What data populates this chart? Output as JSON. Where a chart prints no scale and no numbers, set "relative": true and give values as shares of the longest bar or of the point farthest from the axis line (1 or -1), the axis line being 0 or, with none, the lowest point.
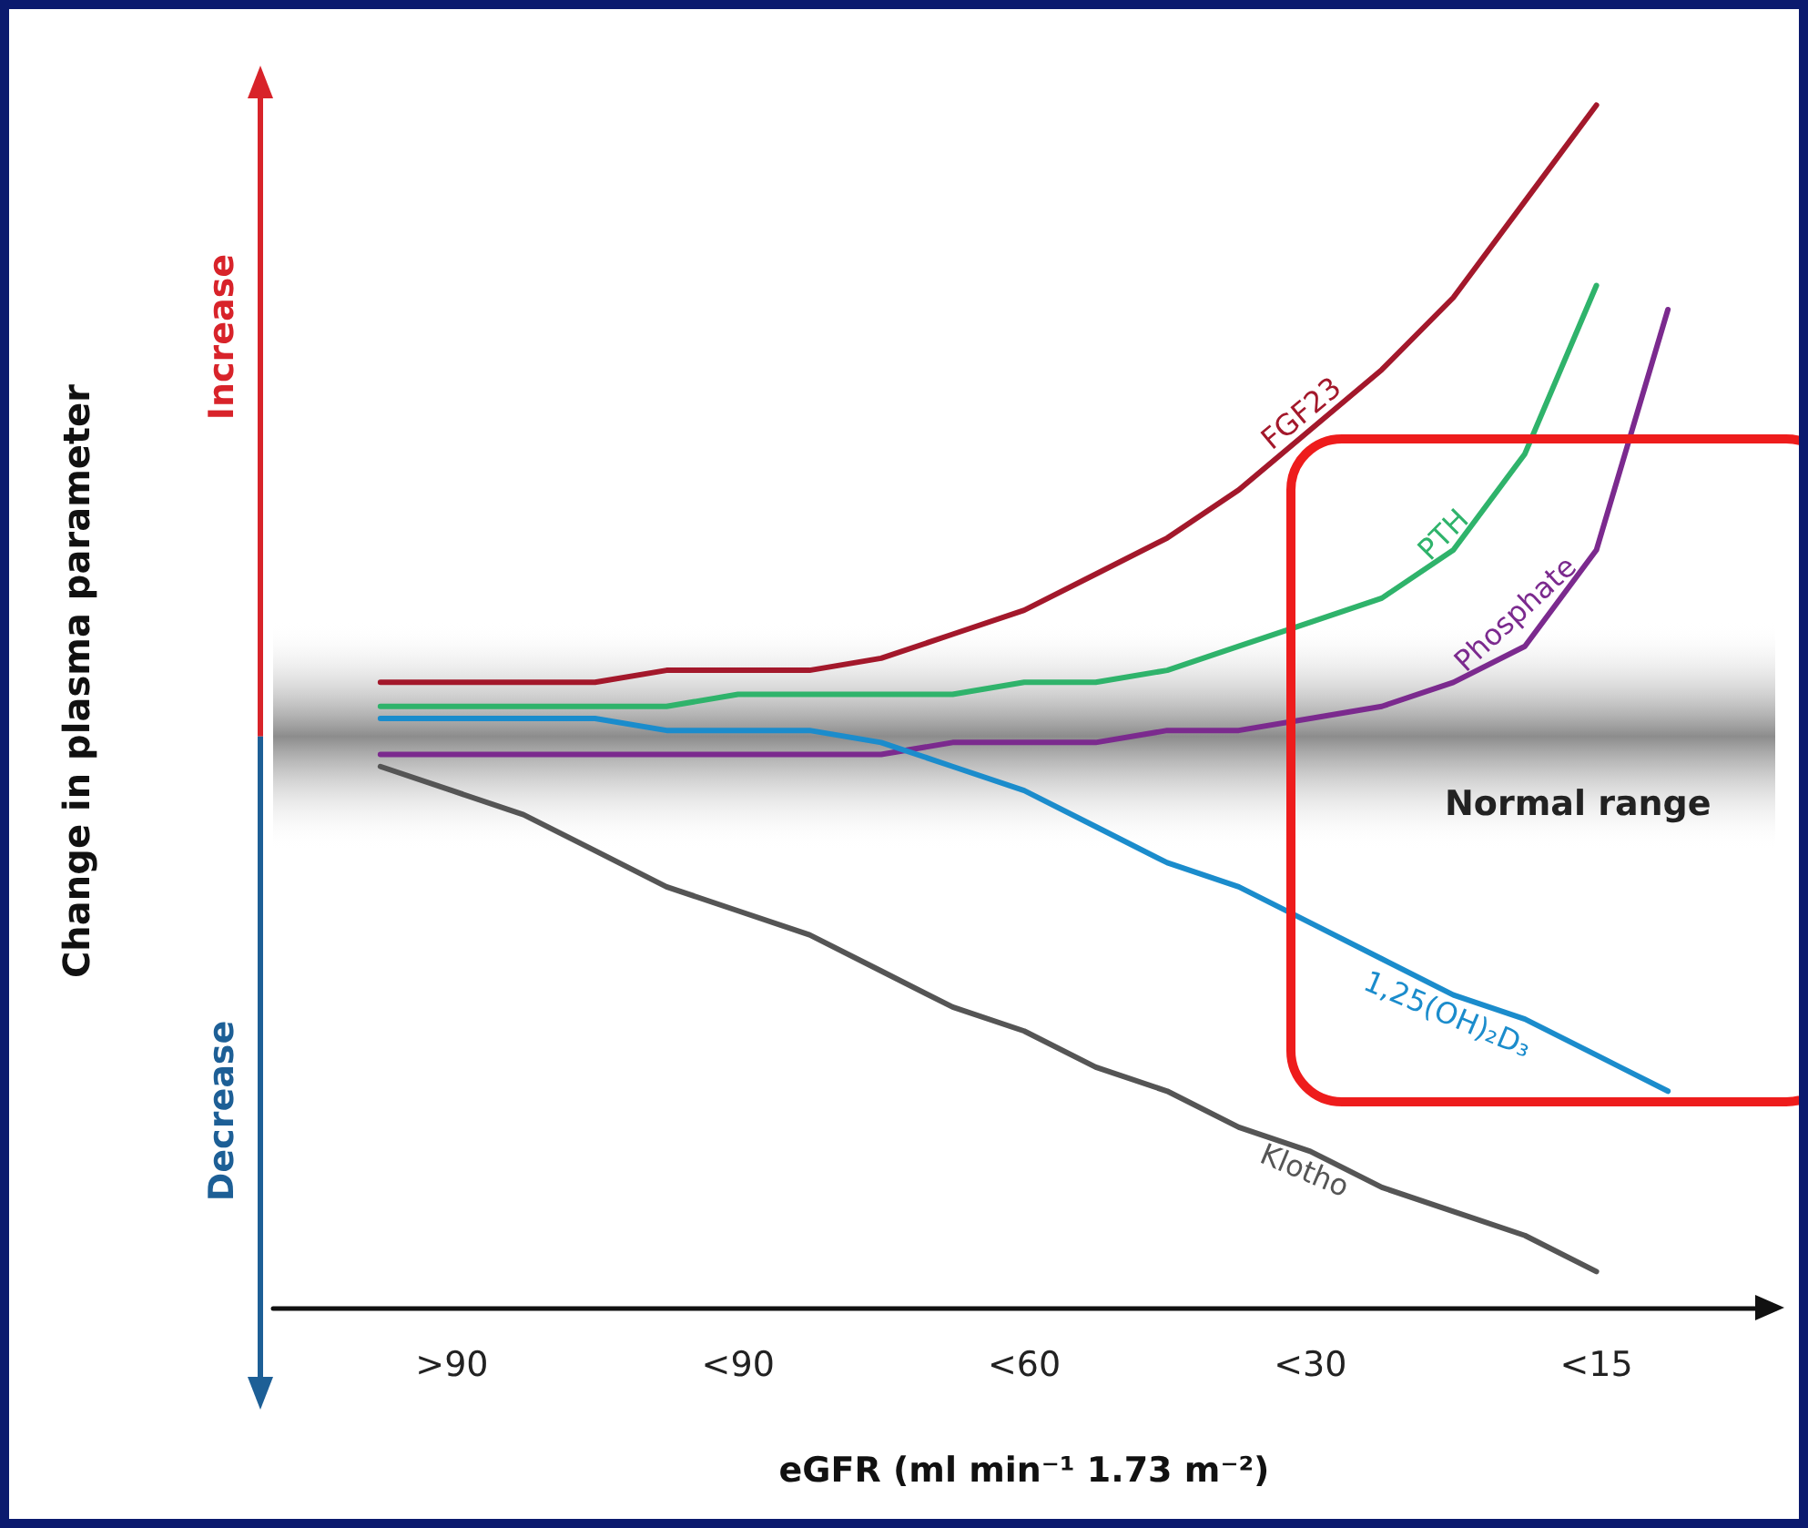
{
  "chart_data": {
    "type": "line",
    "relative": true,
    "xlabel": "eGFR (ml min⁻¹ 1.73 m⁻²)",
    "ylabel": "Change in plasma parameter",
    "annotations": [
      "Increase",
      "Decrease"
    ],
    "categories": [
      null,
      null,
      ">90",
      null,
      null,
      null,
      "<90",
      null,
      null,
      null,
      "<60",
      null,
      null,
      null,
      "<30",
      null,
      null,
      null,
      "<15",
      null,
      null
    ],
    "marker": "none",
    "line_style": "solid",
    "grid": false,
    "legend": false,
    "bands": [
      {
        "axis": "y",
        "from": 0.38,
        "to": 0.57,
        "label": "Normal range",
        "color": "#8c8c8c"
      }
    ],
    "series": [
      {
        "name": "FGF23",
        "color": "#a3182b",
        "values": [
          null,
          0.52,
          0.52,
          0.52,
          0.52,
          0.53,
          0.53,
          0.53,
          0.54,
          0.56,
          0.58,
          0.61,
          0.64,
          0.68,
          0.73,
          0.78,
          0.84,
          0.92,
          1.0,
          null,
          null
        ]
      },
      {
        "name": "PTH",
        "color": "#2fb36b",
        "values": [
          null,
          0.5,
          0.5,
          0.5,
          0.5,
          0.5,
          0.51,
          0.51,
          0.51,
          0.51,
          0.52,
          0.52,
          0.53,
          0.55,
          0.57,
          0.59,
          0.63,
          0.71,
          0.85,
          null,
          null
        ]
      },
      {
        "name": "Phosphate",
        "color": "#7b2a8e",
        "values": [
          null,
          0.46,
          0.46,
          0.46,
          0.46,
          0.46,
          0.46,
          0.46,
          0.46,
          0.47,
          0.47,
          0.47,
          0.48,
          0.48,
          0.49,
          0.5,
          0.52,
          0.55,
          0.63,
          0.83,
          null
        ]
      },
      {
        "name": "1,25(OH)₂D₃",
        "color": "#1b8ccc",
        "values": [
          null,
          0.49,
          0.49,
          0.49,
          0.49,
          0.48,
          0.48,
          0.48,
          0.47,
          0.45,
          0.43,
          0.4,
          0.37,
          0.35,
          0.32,
          0.29,
          0.26,
          0.24,
          0.21,
          0.18,
          null
        ]
      },
      {
        "name": "Klotho",
        "color": "#555555",
        "values": [
          null,
          0.45,
          0.43,
          0.41,
          0.38,
          0.35,
          0.33,
          0.31,
          0.28,
          0.25,
          0.23,
          0.2,
          0.18,
          0.15,
          0.13,
          0.1,
          0.08,
          0.06,
          0.03,
          null,
          null
        ]
      }
    ]
  }
}
